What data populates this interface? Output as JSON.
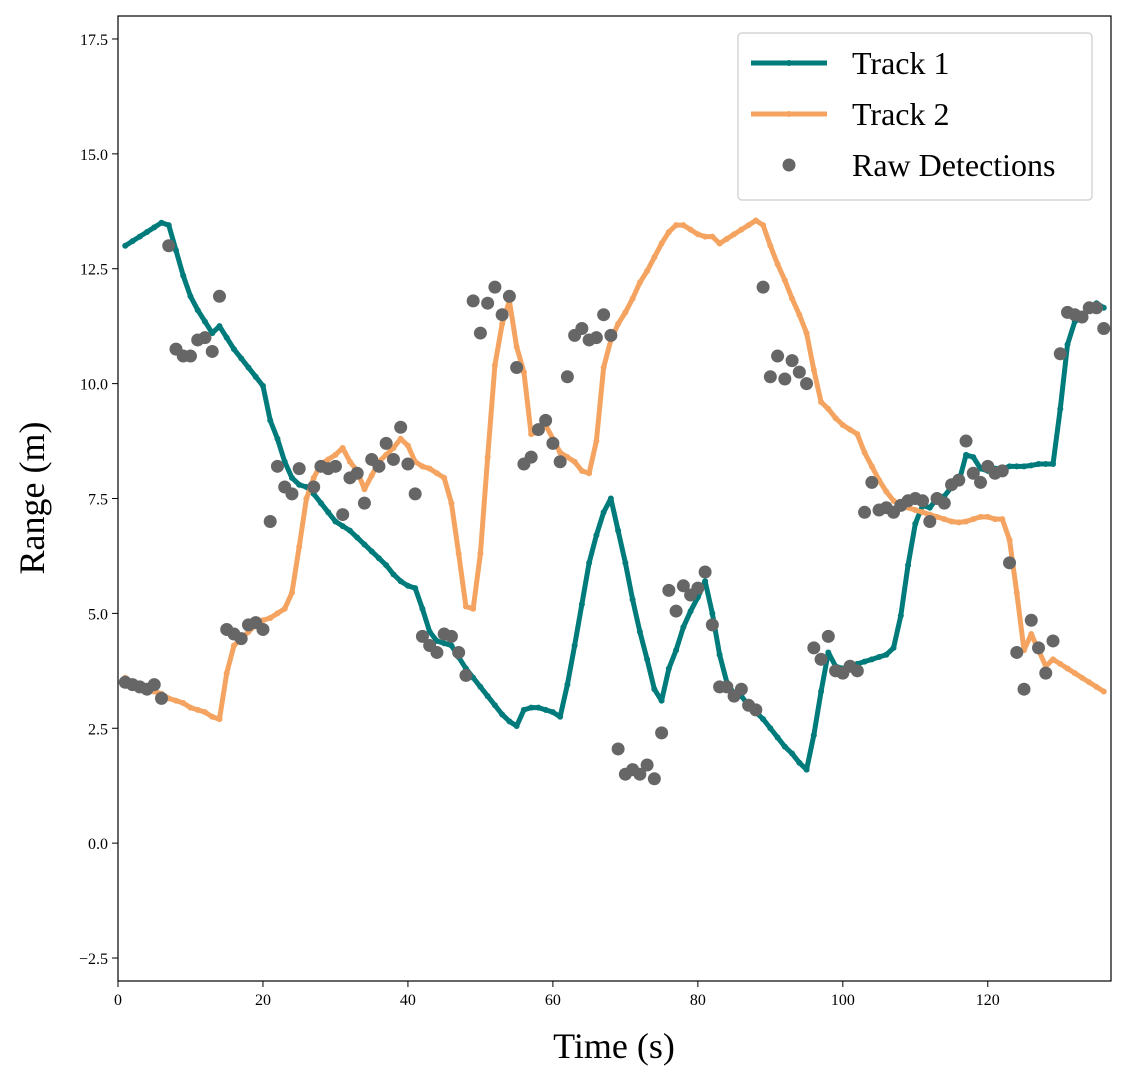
{
  "chart_data": {
    "type": "line",
    "xlabel": "Time (s)",
    "ylabel": "Range (m)",
    "xlim": [
      0,
      137
    ],
    "ylim": [
      -3,
      18
    ],
    "xticks": [
      0,
      20,
      40,
      60,
      80,
      100,
      120
    ],
    "yticks": [
      {
        "value": -2.5,
        "label": "−2.5"
      },
      {
        "value": 0,
        "label": "0.0"
      },
      2.5,
      {
        "value": 5,
        "label": "5.0"
      },
      7.5,
      {
        "value": 10,
        "label": "10.0"
      },
      12.5,
      {
        "value": 15,
        "label": "15.0"
      },
      17.5
    ],
    "legend": "upper right",
    "series": [
      {
        "name": "Track 1",
        "type": "line",
        "color": "#007b7b",
        "x": [
          1,
          2,
          3,
          4,
          5,
          6,
          7,
          8,
          9,
          10,
          11,
          12,
          13,
          14,
          15,
          16,
          17,
          18,
          19,
          20,
          21,
          22,
          23,
          24,
          25,
          26,
          27,
          28,
          29,
          30,
          31,
          32,
          33,
          34,
          35,
          36,
          37,
          38,
          39,
          40,
          41,
          42,
          43,
          44,
          45,
          46,
          47,
          48,
          49,
          50,
          51,
          52,
          53,
          54,
          55,
          56,
          57,
          58,
          59,
          60,
          61,
          62,
          63,
          64,
          65,
          66,
          67,
          68,
          69,
          70,
          71,
          72,
          73,
          74,
          75,
          76,
          77,
          78,
          79,
          80,
          81,
          82,
          83,
          84,
          85,
          86,
          87,
          88,
          89,
          90,
          91,
          92,
          93,
          94,
          95,
          96,
          97,
          98,
          99,
          100,
          101,
          102,
          103,
          104,
          105,
          106,
          107,
          108,
          109,
          110,
          111,
          112,
          113,
          114,
          115,
          116,
          117,
          118,
          119,
          120,
          121,
          122,
          123,
          124,
          125,
          126,
          127,
          128,
          129,
          130,
          131,
          132,
          133,
          134,
          135,
          136
        ],
        "values": [
          13.0,
          13.1,
          13.2,
          13.3,
          13.4,
          13.5,
          13.45,
          12.9,
          12.35,
          11.9,
          11.6,
          11.35,
          11.1,
          11.25,
          11.0,
          10.75,
          10.55,
          10.35,
          10.15,
          9.95,
          9.2,
          8.8,
          8.3,
          7.95,
          7.8,
          7.75,
          7.6,
          7.4,
          7.2,
          7.0,
          6.9,
          6.8,
          6.65,
          6.5,
          6.35,
          6.2,
          6.05,
          5.85,
          5.7,
          5.6,
          5.55,
          5.1,
          4.6,
          4.4,
          4.35,
          4.3,
          4.05,
          3.8,
          3.6,
          3.4,
          3.2,
          3.0,
          2.8,
          2.65,
          2.55,
          2.9,
          2.95,
          2.95,
          2.9,
          2.85,
          2.75,
          3.45,
          4.3,
          5.2,
          6.1,
          6.7,
          7.2,
          7.5,
          6.8,
          6.1,
          5.3,
          4.6,
          4.0,
          3.35,
          3.1,
          3.8,
          4.2,
          4.7,
          5.05,
          5.35,
          5.7,
          5.0,
          4.1,
          3.5,
          3.25,
          3.2,
          3.0,
          2.85,
          2.7,
          2.5,
          2.3,
          2.1,
          1.95,
          1.75,
          1.6,
          2.35,
          3.3,
          4.15,
          3.85,
          3.8,
          3.85,
          3.9,
          3.95,
          4.0,
          4.05,
          4.1,
          4.25,
          4.95,
          6.05,
          6.95,
          7.35,
          7.3,
          7.5,
          7.55,
          7.75,
          7.85,
          8.45,
          8.4,
          8.15,
          8.1,
          8.15,
          8.15,
          8.2,
          8.2,
          8.2,
          8.22,
          8.25,
          8.25,
          8.25,
          9.45,
          10.85,
          11.35,
          11.45,
          11.65,
          11.75,
          11.65
        ]
      },
      {
        "name": "Track 2",
        "type": "line",
        "color": "#f4a460",
        "x": [
          1,
          2,
          3,
          4,
          5,
          6,
          7,
          8,
          9,
          10,
          11,
          12,
          13,
          14,
          15,
          16,
          17,
          18,
          19,
          20,
          21,
          22,
          23,
          24,
          25,
          26,
          27,
          28,
          29,
          30,
          31,
          32,
          33,
          34,
          35,
          36,
          37,
          38,
          39,
          40,
          41,
          42,
          43,
          44,
          45,
          46,
          47,
          48,
          49,
          50,
          51,
          52,
          53,
          54,
          55,
          56,
          57,
          58,
          59,
          60,
          61,
          62,
          63,
          64,
          65,
          66,
          67,
          68,
          69,
          70,
          71,
          72,
          73,
          74,
          75,
          76,
          77,
          78,
          79,
          80,
          81,
          82,
          83,
          84,
          85,
          86,
          87,
          88,
          89,
          90,
          91,
          92,
          93,
          94,
          95,
          96,
          97,
          98,
          99,
          100,
          101,
          102,
          103,
          104,
          105,
          106,
          107,
          108,
          109,
          110,
          111,
          112,
          113,
          114,
          115,
          116,
          117,
          118,
          119,
          120,
          121,
          122,
          123,
          124,
          125,
          126,
          127,
          128,
          129,
          130,
          131,
          132,
          133,
          134,
          135,
          136
        ],
        "values": [
          3.6,
          3.5,
          3.45,
          3.4,
          3.3,
          3.25,
          3.15,
          3.1,
          3.05,
          2.95,
          2.9,
          2.85,
          2.75,
          2.7,
          3.7,
          4.3,
          4.45,
          4.6,
          4.75,
          4.85,
          4.9,
          5.0,
          5.1,
          5.45,
          6.45,
          7.5,
          7.95,
          8.25,
          8.35,
          8.45,
          8.6,
          8.3,
          8.1,
          7.7,
          8.0,
          8.3,
          8.45,
          8.6,
          8.8,
          8.65,
          8.3,
          8.2,
          8.15,
          8.05,
          7.95,
          7.4,
          6.3,
          5.15,
          5.1,
          6.3,
          8.4,
          10.4,
          11.3,
          11.8,
          10.8,
          10.25,
          8.9,
          8.95,
          9.1,
          8.8,
          8.5,
          8.4,
          8.3,
          8.1,
          8.05,
          8.75,
          10.35,
          10.95,
          11.3,
          11.55,
          11.85,
          12.2,
          12.45,
          12.75,
          13.05,
          13.3,
          13.45,
          13.45,
          13.35,
          13.25,
          13.2,
          13.2,
          13.05,
          13.15,
          13.25,
          13.35,
          13.45,
          13.55,
          13.45,
          13.0,
          12.6,
          12.25,
          11.85,
          11.5,
          11.1,
          10.3,
          9.6,
          9.45,
          9.25,
          9.1,
          9.0,
          8.9,
          8.5,
          8.2,
          7.9,
          7.65,
          7.45,
          7.35,
          7.3,
          7.25,
          7.2,
          7.15,
          7.1,
          7.05,
          7.0,
          6.98,
          7.0,
          7.05,
          7.1,
          7.1,
          7.05,
          7.05,
          6.6,
          5.45,
          4.2,
          4.55,
          4.2,
          3.85,
          4.0,
          3.9,
          3.8,
          3.7,
          3.6,
          3.5,
          3.4,
          3.3
        ]
      },
      {
        "name": "Raw Detections",
        "type": "scatter",
        "color": "#666666",
        "x": [
          1,
          2,
          3,
          4,
          5,
          6,
          7,
          8,
          9,
          10,
          11,
          12,
          13,
          14,
          15,
          16,
          17,
          18,
          19,
          20,
          21,
          22,
          23,
          24,
          25,
          27,
          28,
          29,
          30,
          31,
          32,
          33,
          34,
          35,
          36,
          37,
          38,
          39,
          40,
          41,
          42,
          43,
          44,
          45,
          46,
          47,
          48,
          49,
          50,
          51,
          52,
          53,
          54,
          55,
          56,
          57,
          58,
          59,
          60,
          61,
          62,
          63,
          64,
          65,
          66,
          67,
          68,
          69,
          70,
          71,
          72,
          73,
          74,
          75,
          76,
          77,
          78,
          79,
          80,
          81,
          82,
          83,
          84,
          85,
          86,
          87,
          88,
          89,
          90,
          91,
          92,
          93,
          94,
          95,
          96,
          97,
          98,
          99,
          100,
          101,
          102,
          103,
          104,
          105,
          106,
          107,
          108,
          109,
          110,
          111,
          112,
          113,
          114,
          115,
          116,
          117,
          118,
          119,
          120,
          121,
          122,
          123,
          124,
          125,
          126,
          127,
          128,
          129,
          130,
          131,
          132,
          133,
          134,
          135,
          136
        ],
        "values": [
          3.5,
          3.45,
          3.4,
          3.35,
          3.45,
          3.15,
          13.0,
          10.75,
          10.6,
          10.6,
          10.95,
          11.0,
          10.7,
          11.9,
          4.65,
          4.55,
          4.45,
          4.75,
          4.8,
          4.65,
          7.0,
          8.2,
          7.75,
          7.6,
          8.15,
          7.75,
          8.2,
          8.15,
          8.2,
          7.15,
          7.95,
          8.05,
          7.4,
          8.35,
          8.2,
          8.7,
          8.35,
          9.05,
          8.25,
          7.6,
          4.5,
          4.3,
          4.15,
          4.55,
          4.5,
          4.15,
          3.65,
          11.8,
          11.1,
          11.75,
          12.1,
          11.5,
          11.9,
          10.35,
          8.25,
          8.4,
          9.0,
          9.2,
          8.7,
          8.3,
          10.15,
          11.05,
          11.2,
          10.95,
          11.0,
          11.5,
          11.05,
          2.05,
          1.5,
          1.6,
          1.5,
          1.7,
          1.4,
          2.4,
          5.5,
          5.05,
          5.6,
          5.4,
          5.55,
          5.9,
          4.75,
          3.4,
          3.4,
          3.2,
          3.35,
          3.0,
          2.9,
          12.1,
          10.15,
          10.6,
          10.1,
          10.5,
          10.25,
          10.0,
          4.25,
          4.0,
          4.5,
          3.75,
          3.7,
          3.85,
          3.75,
          7.2,
          7.85,
          7.25,
          7.3,
          7.2,
          7.35,
          7.45,
          7.5,
          7.45,
          7.0,
          7.5,
          7.4,
          7.8,
          7.9,
          8.75,
          8.05,
          7.85,
          8.2,
          8.05,
          8.1,
          6.1,
          4.15,
          3.35,
          4.85,
          4.25,
          3.7,
          4.4,
          10.65,
          11.55,
          11.5,
          11.45,
          11.65,
          11.65,
          11.2
        ]
      }
    ]
  }
}
